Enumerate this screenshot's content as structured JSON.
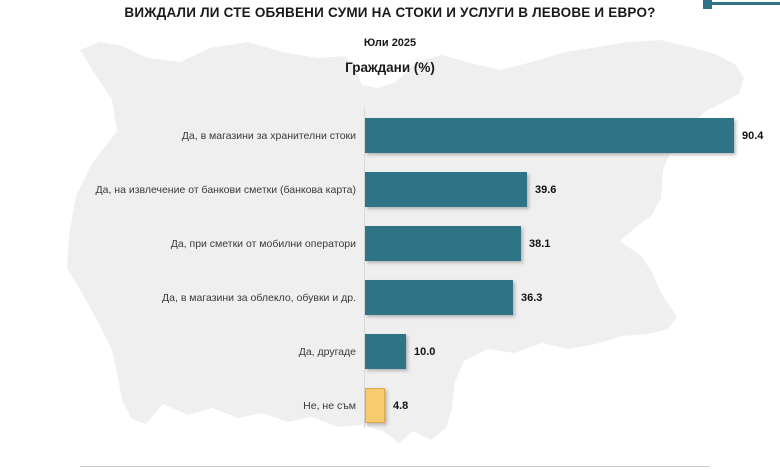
{
  "header": {
    "title": "ВИЖДАЛИ ЛИ СТЕ ОБЯВЕНИ СУМИ НА СТОКИ И УСЛУГИ В ЛЕВОВЕ И ЕВРО?",
    "subtitle": "Юли 2025",
    "axis_title": "Граждани (%)"
  },
  "colors": {
    "bar_teal": "#2E7486",
    "bar_yellow": "#F8CB6F",
    "yellow_border": "#DFA850",
    "map_gray": "#EFEFEF",
    "accent_line": "#2E7486",
    "axis_gray": "#D8D8D8"
  },
  "chart_data": {
    "type": "bar",
    "orientation": "horizontal",
    "title": "ВИЖДАЛИ ЛИ СТЕ ОБЯВЕНИ СУМИ НА СТОКИ И УСЛУГИ В ЛЕВОВЕ И ЕВРО?",
    "subtitle": "Юли 2025",
    "unit_label": "Граждани (%)",
    "xlim": [
      0,
      100
    ],
    "grid": false,
    "legend": "none",
    "categories": [
      "Да, в магазини за хранителни стоки",
      "Да, на извлечение от банкови сметки (банкова карта)",
      "Да, при сметки от мобилни оператори",
      "Да, в магазини за облекло, обувки и др.",
      "Да, другаде",
      "Не, не съм"
    ],
    "values": [
      90.4,
      39.6,
      38.1,
      36.3,
      10.0,
      4.8
    ],
    "rows": [
      {
        "label": "Да, в магазини за хранителни стоки",
        "value": 90.4,
        "display": "90.4",
        "color_key": "teal"
      },
      {
        "label": "Да, на извлечение от банкови сметки (банкова карта)",
        "value": 39.6,
        "display": "39.6",
        "color_key": "teal"
      },
      {
        "label": "Да, при сметки от мобилни оператори",
        "value": 38.1,
        "display": "38.1",
        "color_key": "teal"
      },
      {
        "label": "Да, в магазини за облекло, обувки и др.",
        "value": 36.3,
        "display": "36.3",
        "color_key": "teal"
      },
      {
        "label": "Да, другаде",
        "value": 10.0,
        "display": "10.0",
        "color_key": "teal"
      },
      {
        "label": "Не, не съм",
        "value": 4.8,
        "display": "4.8",
        "color_key": "yellow"
      }
    ]
  }
}
